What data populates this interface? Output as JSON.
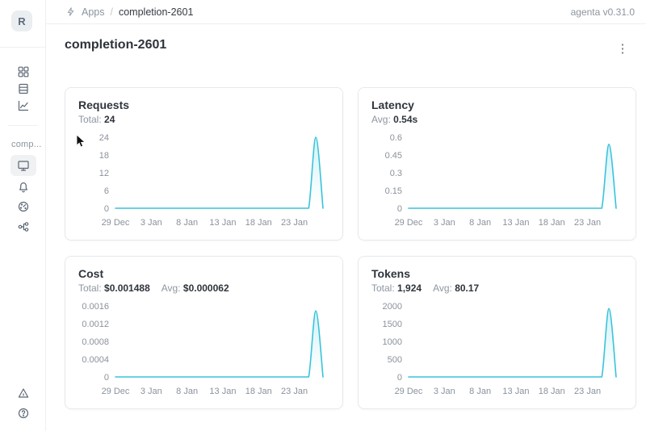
{
  "header": {
    "breadcrumb": {
      "root": "Apps",
      "separator": "/",
      "current": "completion-2601"
    },
    "version": "agenta v0.31.0"
  },
  "sidebar": {
    "avatar_letter": "R",
    "app_label": "comp...",
    "nav_top_icons": [
      "apps-grid-icon",
      "registry-icon",
      "observability-chart-icon"
    ],
    "nav_app_icons": [
      "playground-monitor-icon",
      "bell-icon",
      "gauge-icon",
      "trace-tree-icon"
    ],
    "nav_bottom_icons": [
      "warning-triangle-icon",
      "help-circle-icon"
    ],
    "active_item": "playground-monitor"
  },
  "page": {
    "title": "completion-2601",
    "kebab_menu": "⋮"
  },
  "cards": [
    {
      "id": "requests",
      "title": "Requests",
      "stats": [
        {
          "label": "Total:",
          "value": "24"
        }
      ]
    },
    {
      "id": "latency",
      "title": "Latency",
      "stats": [
        {
          "label": "Avg:",
          "value": "0.54s"
        }
      ]
    },
    {
      "id": "cost",
      "title": "Cost",
      "stats": [
        {
          "label": "Total:",
          "value": "$0.001488"
        },
        {
          "label": "Avg:",
          "value": "$0.000062"
        }
      ]
    },
    {
      "id": "tokens",
      "title": "Tokens",
      "stats": [
        {
          "label": "Total:",
          "value": "1,924"
        },
        {
          "label": "Avg:",
          "value": "80.17"
        }
      ]
    }
  ],
  "chart_data": [
    {
      "type": "area",
      "title": "Requests",
      "total": 24,
      "x_tick_labels": [
        "29 Dec",
        "3 Jan",
        "8 Jan",
        "13 Jan",
        "18 Jan",
        "23 Jan"
      ],
      "x_tick_positions": [
        0,
        5,
        10,
        15,
        20,
        25
      ],
      "x_domain_days": 29,
      "y_ticks": [
        0,
        6,
        12,
        18,
        24
      ],
      "y_tick_labels": [
        "0",
        "6",
        "12",
        "18",
        "24"
      ],
      "ylim": [
        0,
        24
      ],
      "grid": false,
      "legend": false,
      "line_color": "#38c3da",
      "values": [
        0,
        0,
        0,
        0,
        0,
        0,
        0,
        0,
        0,
        0,
        0,
        0,
        0,
        0,
        0,
        0,
        0,
        0,
        0,
        0,
        0,
        0,
        0,
        0,
        0,
        0,
        0,
        0,
        24,
        0
      ]
    },
    {
      "type": "area",
      "title": "Latency",
      "avg": "0.54s",
      "x_tick_labels": [
        "29 Dec",
        "3 Jan",
        "8 Jan",
        "13 Jan",
        "18 Jan",
        "23 Jan"
      ],
      "x_tick_positions": [
        0,
        5,
        10,
        15,
        20,
        25
      ],
      "x_domain_days": 29,
      "y_ticks": [
        0,
        0.15,
        0.3,
        0.45,
        0.6
      ],
      "y_tick_labels": [
        "0",
        "0.15",
        "0.3",
        "0.45",
        "0.6"
      ],
      "ylim": [
        0,
        0.6
      ],
      "grid": false,
      "legend": false,
      "line_color": "#38c3da",
      "values": [
        0,
        0,
        0,
        0,
        0,
        0,
        0,
        0,
        0,
        0,
        0,
        0,
        0,
        0,
        0,
        0,
        0,
        0,
        0,
        0,
        0,
        0,
        0,
        0,
        0,
        0,
        0,
        0,
        0.54,
        0
      ]
    },
    {
      "type": "area",
      "title": "Cost",
      "total": "$0.001488",
      "avg": "$0.000062",
      "x_tick_labels": [
        "29 Dec",
        "3 Jan",
        "8 Jan",
        "13 Jan",
        "18 Jan",
        "23 Jan"
      ],
      "x_tick_positions": [
        0,
        5,
        10,
        15,
        20,
        25
      ],
      "x_domain_days": 29,
      "y_ticks": [
        0,
        0.0004,
        0.0008,
        0.0012,
        0.0016
      ],
      "y_tick_labels": [
        "0",
        "0.0004",
        "0.0008",
        "0.0012",
        "0.0016"
      ],
      "ylim": [
        0,
        0.0016
      ],
      "grid": false,
      "legend": false,
      "line_color": "#38c3da",
      "values": [
        0,
        0,
        0,
        0,
        0,
        0,
        0,
        0,
        0,
        0,
        0,
        0,
        0,
        0,
        0,
        0,
        0,
        0,
        0,
        0,
        0,
        0,
        0,
        0,
        0,
        0,
        0,
        0,
        0.001488,
        0
      ]
    },
    {
      "type": "area",
      "title": "Tokens",
      "total": "1,924",
      "avg": "80.17",
      "x_tick_labels": [
        "29 Dec",
        "3 Jan",
        "8 Jan",
        "13 Jan",
        "18 Jan",
        "23 Jan"
      ],
      "x_tick_positions": [
        0,
        5,
        10,
        15,
        20,
        25
      ],
      "x_domain_days": 29,
      "y_ticks": [
        0,
        500,
        1000,
        1500,
        2000
      ],
      "y_tick_labels": [
        "0",
        "500",
        "1000",
        "1500",
        "2000"
      ],
      "ylim": [
        0,
        2000
      ],
      "grid": false,
      "legend": false,
      "line_color": "#38c3da",
      "values": [
        0,
        0,
        0,
        0,
        0,
        0,
        0,
        0,
        0,
        0,
        0,
        0,
        0,
        0,
        0,
        0,
        0,
        0,
        0,
        0,
        0,
        0,
        0,
        0,
        0,
        0,
        0,
        0,
        1924,
        0
      ]
    }
  ]
}
